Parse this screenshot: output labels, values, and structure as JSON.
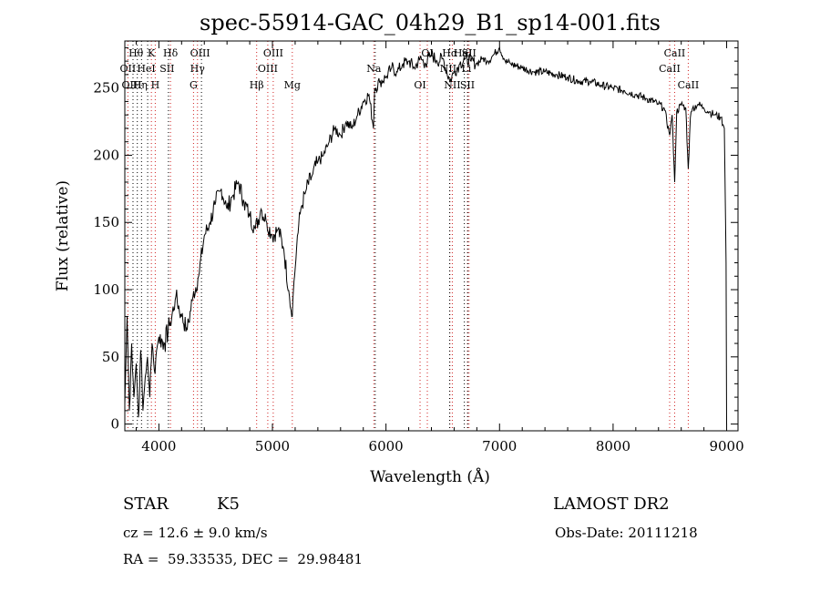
{
  "chart_data": {
    "type": "line",
    "title": "spec-55914-GAC_04h29_B1_sp14-001.fits",
    "xlabel": "Wavelength (Å)",
    "ylabel": "Flux (relative)",
    "xlim": [
      3700,
      9100
    ],
    "ylim": [
      -5,
      285
    ],
    "xticks": [
      4000,
      5000,
      6000,
      7000,
      8000,
      9000
    ],
    "yticks": [
      0,
      50,
      100,
      150,
      200,
      250
    ],
    "grid": false,
    "series": [
      {
        "x": [
          3700,
          3720,
          3740,
          3760,
          3780,
          3800,
          3820,
          3840,
          3860,
          3880,
          3900,
          3920,
          3940,
          3960,
          3980,
          4000,
          4050,
          4100,
          4150,
          4200,
          4250,
          4300,
          4350,
          4400,
          4450,
          4500,
          4550,
          4600,
          4650,
          4700,
          4750,
          4800,
          4850,
          4900,
          4950,
          5000,
          5050,
          5100,
          5150,
          5170,
          5185,
          5200,
          5220,
          5250,
          5300,
          5350,
          5400,
          5450,
          5500,
          5550,
          5600,
          5650,
          5700,
          5750,
          5800,
          5850,
          5890,
          5900,
          5950,
          6000,
          6050,
          6100,
          6150,
          6200,
          6250,
          6300,
          6350,
          6400,
          6450,
          6500,
          6563,
          6600,
          6650,
          6700,
          6750,
          6800,
          6850,
          6900,
          6950,
          7000,
          7050,
          7100,
          7200,
          7300,
          7400,
          7500,
          7600,
          7700,
          7800,
          7900,
          8000,
          8100,
          8200,
          8300,
          8400,
          8450,
          8498,
          8520,
          8542,
          8560,
          8600,
          8640,
          8662,
          8680,
          8700,
          8750,
          8800,
          8850,
          8900,
          8950,
          8980,
          8995,
          9000
        ],
        "y": [
          15,
          80,
          10,
          60,
          20,
          45,
          5,
          55,
          10,
          35,
          50,
          20,
          60,
          40,
          55,
          65,
          60,
          75,
          95,
          80,
          70,
          95,
          110,
          140,
          150,
          165,
          175,
          160,
          170,
          180,
          165,
          155,
          145,
          160,
          150,
          140,
          145,
          130,
          95,
          80,
          100,
          115,
          140,
          160,
          175,
          185,
          195,
          200,
          210,
          220,
          215,
          225,
          220,
          230,
          240,
          245,
          220,
          250,
          255,
          258,
          265,
          262,
          268,
          270,
          265,
          272,
          268,
          275,
          270,
          272,
          255,
          262,
          268,
          272,
          270,
          268,
          272,
          270,
          275,
          280,
          270,
          268,
          265,
          262,
          262,
          260,
          258,
          255,
          255,
          252,
          250,
          248,
          245,
          242,
          238,
          235,
          215,
          230,
          180,
          232,
          238,
          235,
          190,
          228,
          235,
          238,
          235,
          232,
          230,
          228,
          220,
          120,
          0
        ]
      }
    ],
    "line_marks": [
      {
        "label": "Hθ",
        "x": 3798,
        "row": 0,
        "color": "#000000"
      },
      {
        "label": "K",
        "x": 3934,
        "row": 0,
        "color": "#000000"
      },
      {
        "label": "Hδ",
        "x": 4102,
        "row": 0,
        "color": "#000000"
      },
      {
        "label": "OIII",
        "x": 4363,
        "row": 0,
        "color": "#000000"
      },
      {
        "label": "OIII",
        "x": 5007,
        "row": 0,
        "color": "#000000"
      },
      {
        "label": "OI",
        "x": 6364,
        "row": 0,
        "color": "#000000"
      },
      {
        "label": "HeI",
        "x": 6678,
        "row": 0,
        "color": "#000000"
      },
      {
        "label": "CaII",
        "x": 8542,
        "row": 0,
        "color": "#000000"
      },
      {
        "label": "OII",
        "x": 3727,
        "row": 1,
        "color": "#000000"
      },
      {
        "label": "HeI",
        "x": 3889,
        "row": 1,
        "color": "#000000"
      },
      {
        "label": "SII",
        "x": 4072,
        "row": 1,
        "color": "#000000"
      },
      {
        "label": "Hγ",
        "x": 4340,
        "row": 1,
        "color": "#000000"
      },
      {
        "label": "OIII",
        "x": 4959,
        "row": 1,
        "color": "#000000"
      },
      {
        "label": "Na",
        "x": 5893,
        "row": 1,
        "color": "#000000"
      },
      {
        "label": "NII",
        "x": 6548,
        "row": 1,
        "color": "#000000"
      },
      {
        "label": "Li",
        "x": 6708,
        "row": 1,
        "color": "#000000"
      },
      {
        "label": "CaII",
        "x": 8498,
        "row": 1,
        "color": "#000000"
      },
      {
        "label": "OIII",
        "x": 3760,
        "row": 2,
        "color": "#000000"
      },
      {
        "label": "Hη",
        "x": 3835,
        "row": 2,
        "color": "#000000"
      },
      {
        "label": "H",
        "x": 3968,
        "row": 2,
        "color": "#000000"
      },
      {
        "label": "G",
        "x": 4305,
        "row": 2,
        "color": "#000000"
      },
      {
        "label": "Hβ",
        "x": 4861,
        "row": 2,
        "color": "#000000"
      },
      {
        "label": "Mg",
        "x": 5175,
        "row": 2,
        "color": "#000000"
      },
      {
        "label": "OI",
        "x": 6300,
        "row": 2,
        "color": "#000000"
      },
      {
        "label": "NII",
        "x": 6584,
        "row": 2,
        "color": "#000000"
      },
      {
        "label": "SII",
        "x": 6717,
        "row": 2,
        "color": "#000000"
      },
      {
        "label": "CaII",
        "x": 8662,
        "row": 2,
        "color": "#000000"
      },
      {
        "label": "Hα",
        "x": 6563,
        "row": 0,
        "color": "#000000"
      },
      {
        "label": "SII",
        "x": 6731,
        "row": 0,
        "color": "#000000"
      }
    ],
    "red_lines": [
      3727,
      3934,
      3968,
      4102,
      4305,
      4340,
      4861,
      4959,
      5007,
      5175,
      5893,
      6300,
      6364,
      6563,
      6584,
      6717,
      6731,
      8498,
      8542,
      8662
    ],
    "black_lines": [
      3760,
      3798,
      3835,
      3889,
      4072,
      4363,
      5893,
      6548,
      6678,
      6708
    ]
  },
  "info": {
    "object_type": "STAR",
    "subclass": "K5",
    "survey": "LAMOST DR2",
    "cz": "cz = 12.6 ± 9.0 km/s",
    "obs_date": "Obs-Date: 20111218",
    "coords": "RA =  59.33535, DEC =  29.98481"
  }
}
